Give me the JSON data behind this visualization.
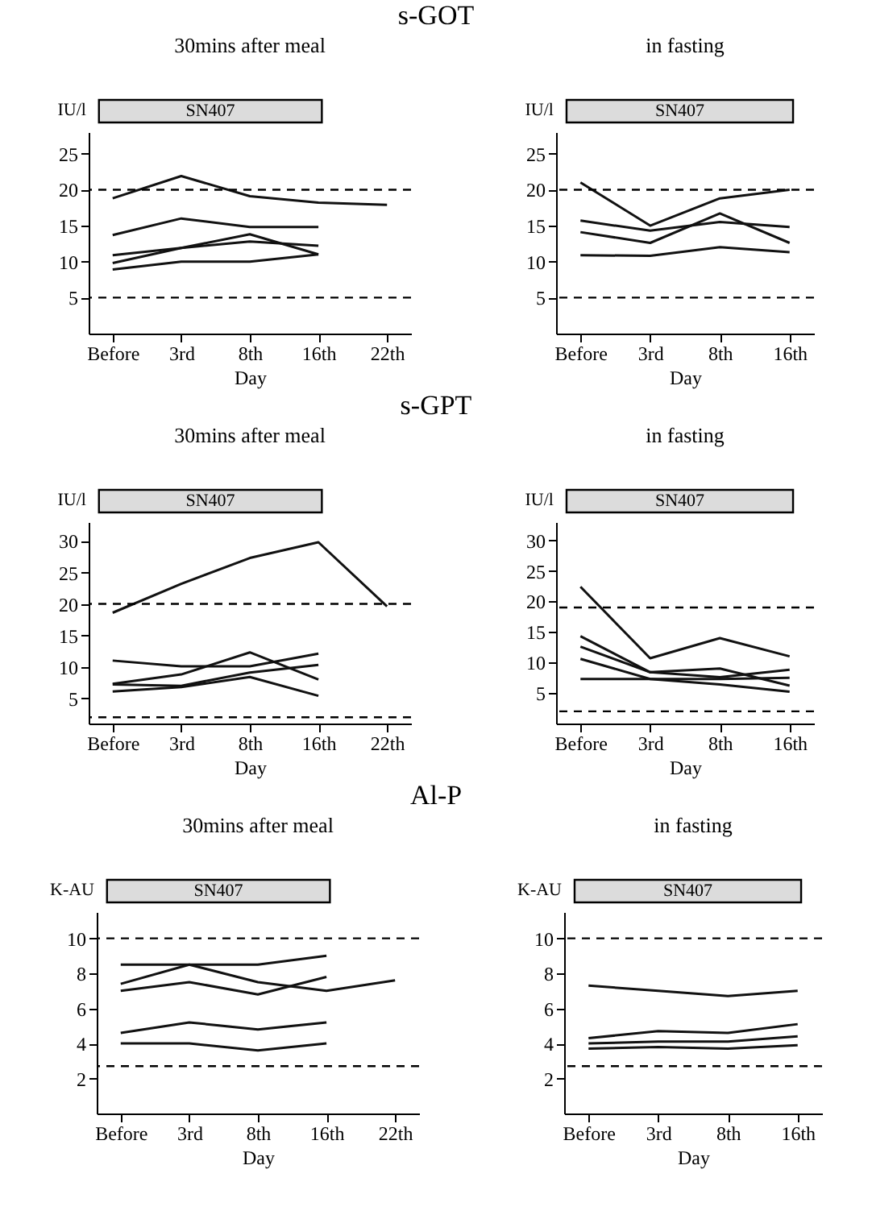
{
  "chart_data": [
    {
      "type": "line",
      "title": "s-GOT",
      "subtitle": "30mins after meal",
      "xlabel": "Day",
      "ylabel": "IU/l",
      "categories": [
        "Before",
        "3rd",
        "8th",
        "16th",
        "22th"
      ],
      "ylim": [
        0,
        28
      ],
      "yticks": [
        5,
        10,
        15,
        20,
        25
      ],
      "series": [
        {
          "color": "#111111",
          "values": [
            18.8,
            21.9,
            19.1,
            18.2,
            17.9
          ]
        },
        {
          "color": "#111111",
          "values": [
            13.7,
            16,
            14.8,
            14.8,
            null
          ]
        },
        {
          "color": "#111111",
          "values": [
            10.9,
            11.9,
            12.8,
            12.2,
            null
          ]
        },
        {
          "color": "#111111",
          "values": [
            9.8,
            11.9,
            13.8,
            11,
            null
          ]
        },
        {
          "color": "#111111",
          "values": [
            8.9,
            10,
            10,
            11,
            null
          ]
        }
      ],
      "ref_lines": [
        {
          "axis": "y",
          "value": 20,
          "line_style": "dashed"
        },
        {
          "axis": "y",
          "value": 5,
          "line_style": "dashed"
        }
      ],
      "annotations": [
        "SN407"
      ]
    },
    {
      "type": "line",
      "subtitle": "in fasting",
      "xlabel": "Day",
      "ylabel": "IU/l",
      "categories": [
        "Before",
        "3rd",
        "8th",
        "16th"
      ],
      "ylim": [
        0,
        28
      ],
      "yticks": [
        5,
        10,
        15,
        20,
        25
      ],
      "series": [
        {
          "color": "#111111",
          "values": [
            21,
            15,
            18.8,
            20
          ]
        },
        {
          "color": "#111111",
          "values": [
            15.7,
            14.3,
            15.5,
            14.8
          ]
        },
        {
          "color": "#111111",
          "values": [
            14.1,
            12.6,
            16.7,
            12.6
          ]
        },
        {
          "color": "#111111",
          "values": [
            10.9,
            10.8,
            12,
            11.3
          ]
        }
      ],
      "ref_lines": [
        {
          "axis": "y",
          "value": 20,
          "line_style": "dashed"
        },
        {
          "axis": "y",
          "value": 5,
          "line_style": "dashed"
        }
      ],
      "annotations": [
        "SN407"
      ]
    },
    {
      "type": "line",
      "title": "s-GPT",
      "subtitle": "30mins after meal",
      "xlabel": "Day",
      "ylabel": "IU/l",
      "categories": [
        "Before",
        "3rd",
        "8th",
        "16th",
        "22th"
      ],
      "ylim": [
        1,
        33
      ],
      "yticks": [
        5,
        10,
        15,
        20,
        25,
        30
      ],
      "series": [
        {
          "color": "#111111",
          "values": [
            18.6,
            23.2,
            27.3,
            29.8,
            19.6
          ]
        },
        {
          "color": "#111111",
          "values": [
            11,
            10.1,
            10.1,
            12.1,
            null
          ]
        },
        {
          "color": "#111111",
          "values": [
            7.3,
            8.8,
            12.3,
            8,
            null
          ]
        },
        {
          "color": "#111111",
          "values": [
            7.2,
            7,
            9.1,
            10.3,
            null
          ]
        },
        {
          "color": "#111111",
          "values": [
            6.1,
            6.8,
            8.4,
            5.4,
            null
          ]
        }
      ],
      "ref_lines": [
        {
          "axis": "y",
          "value": 20,
          "line_style": "dashed"
        },
        {
          "axis": "y",
          "value": 2,
          "line_style": "dashed"
        }
      ],
      "annotations": [
        "SN407"
      ]
    },
    {
      "type": "line",
      "subtitle": "in fasting",
      "xlabel": "Day",
      "ylabel": "IU/l",
      "categories": [
        "Before",
        "3rd",
        "8th",
        "16th"
      ],
      "ylim": [
        0,
        33
      ],
      "yticks": [
        5,
        10,
        15,
        20,
        25,
        30
      ],
      "series": [
        {
          "color": "#111111",
          "values": [
            22.4,
            10.7,
            14,
            11
          ]
        },
        {
          "color": "#111111",
          "values": [
            14.3,
            8.4,
            9,
            6.2
          ]
        },
        {
          "color": "#111111",
          "values": [
            12.6,
            8.4,
            7.6,
            8.8
          ]
        },
        {
          "color": "#111111",
          "values": [
            10.6,
            7.3,
            6.4,
            5.2
          ]
        },
        {
          "color": "#111111",
          "values": [
            7.3,
            7.3,
            7.3,
            7.5
          ]
        }
      ],
      "ref_lines": [
        {
          "axis": "y",
          "value": 19,
          "line_style": "dashed"
        },
        {
          "axis": "y",
          "value": 2,
          "line_style": "dashed"
        }
      ],
      "annotations": [
        "SN407"
      ]
    },
    {
      "type": "line",
      "title": "Al-P",
      "subtitle": "30mins after meal",
      "xlabel": "Day",
      "ylabel": "K-AU",
      "categories": [
        "Before",
        "3rd",
        "8th",
        "16th",
        "22th"
      ],
      "ylim": [
        0,
        11.5
      ],
      "yticks": [
        2,
        4,
        6,
        8,
        10
      ],
      "series": [
        {
          "color": "#111111",
          "values": [
            8.5,
            8.5,
            8.5,
            9,
            null
          ]
        },
        {
          "color": "#111111",
          "values": [
            7.4,
            8.5,
            7.5,
            7,
            7.6
          ]
        },
        {
          "color": "#111111",
          "values": [
            7,
            7.5,
            6.8,
            7.8,
            null
          ]
        },
        {
          "color": "#111111",
          "values": [
            4.6,
            5.2,
            4.8,
            5.2,
            null
          ]
        },
        {
          "color": "#111111",
          "values": [
            4,
            4,
            3.6,
            4,
            null
          ]
        }
      ],
      "ref_lines": [
        {
          "axis": "y",
          "value": 10,
          "line_style": "dashed"
        },
        {
          "axis": "y",
          "value": 2.7,
          "line_style": "dashed"
        }
      ],
      "annotations": [
        "SN407"
      ]
    },
    {
      "type": "line",
      "subtitle": "in fasting",
      "xlabel": "Day",
      "ylabel": "K-AU",
      "categories": [
        "Before",
        "3rd",
        "8th",
        "16th"
      ],
      "ylim": [
        0,
        11.5
      ],
      "yticks": [
        2,
        4,
        6,
        8,
        10
      ],
      "series": [
        {
          "color": "#111111",
          "values": [
            7.3,
            7,
            6.7,
            7
          ]
        },
        {
          "color": "#111111",
          "values": [
            4.3,
            4.7,
            4.6,
            5.1
          ]
        },
        {
          "color": "#111111",
          "values": [
            4,
            4.1,
            4.1,
            4.4
          ]
        },
        {
          "color": "#111111",
          "values": [
            3.7,
            3.8,
            3.7,
            3.9
          ]
        }
      ],
      "ref_lines": [
        {
          "axis": "y",
          "value": 10,
          "line_style": "dashed"
        },
        {
          "axis": "y",
          "value": 2.7,
          "line_style": "dashed"
        }
      ],
      "annotations": [
        "SN407"
      ]
    }
  ]
}
